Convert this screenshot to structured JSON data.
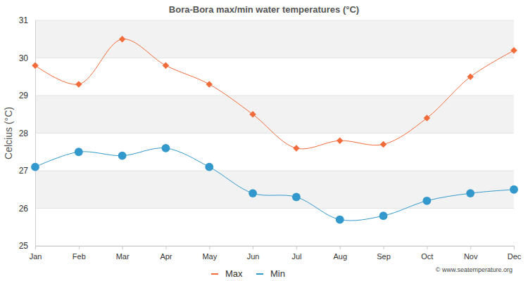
{
  "chart_data": {
    "type": "line",
    "title": "Bora-Bora max/min water temperatures (°C)",
    "ylabel": "Celcius (°C)",
    "annotations": [
      "© www.seatemperature.org"
    ],
    "categories": [
      "Jan",
      "Feb",
      "Mar",
      "Apr",
      "May",
      "Jun",
      "Jul",
      "Aug",
      "Sep",
      "Oct",
      "Nov",
      "Dec"
    ],
    "series": [
      {
        "name": "Max",
        "color": "#f26b3a",
        "marker": "diamond",
        "values": [
          29.8,
          29.3,
          30.5,
          29.8,
          29.3,
          28.5,
          27.6,
          27.8,
          27.7,
          28.4,
          29.5,
          30.2
        ]
      },
      {
        "name": "Min",
        "color": "#3399cc",
        "marker": "circle",
        "values": [
          27.1,
          27.5,
          27.4,
          27.6,
          27.1,
          26.4,
          26.3,
          25.7,
          25.8,
          26.2,
          26.4,
          26.5
        ]
      }
    ],
    "ylim": [
      25,
      31
    ],
    "yticks": [
      25,
      26,
      27,
      28,
      29,
      30,
      31
    ],
    "grid": true,
    "legend": "bottom"
  }
}
